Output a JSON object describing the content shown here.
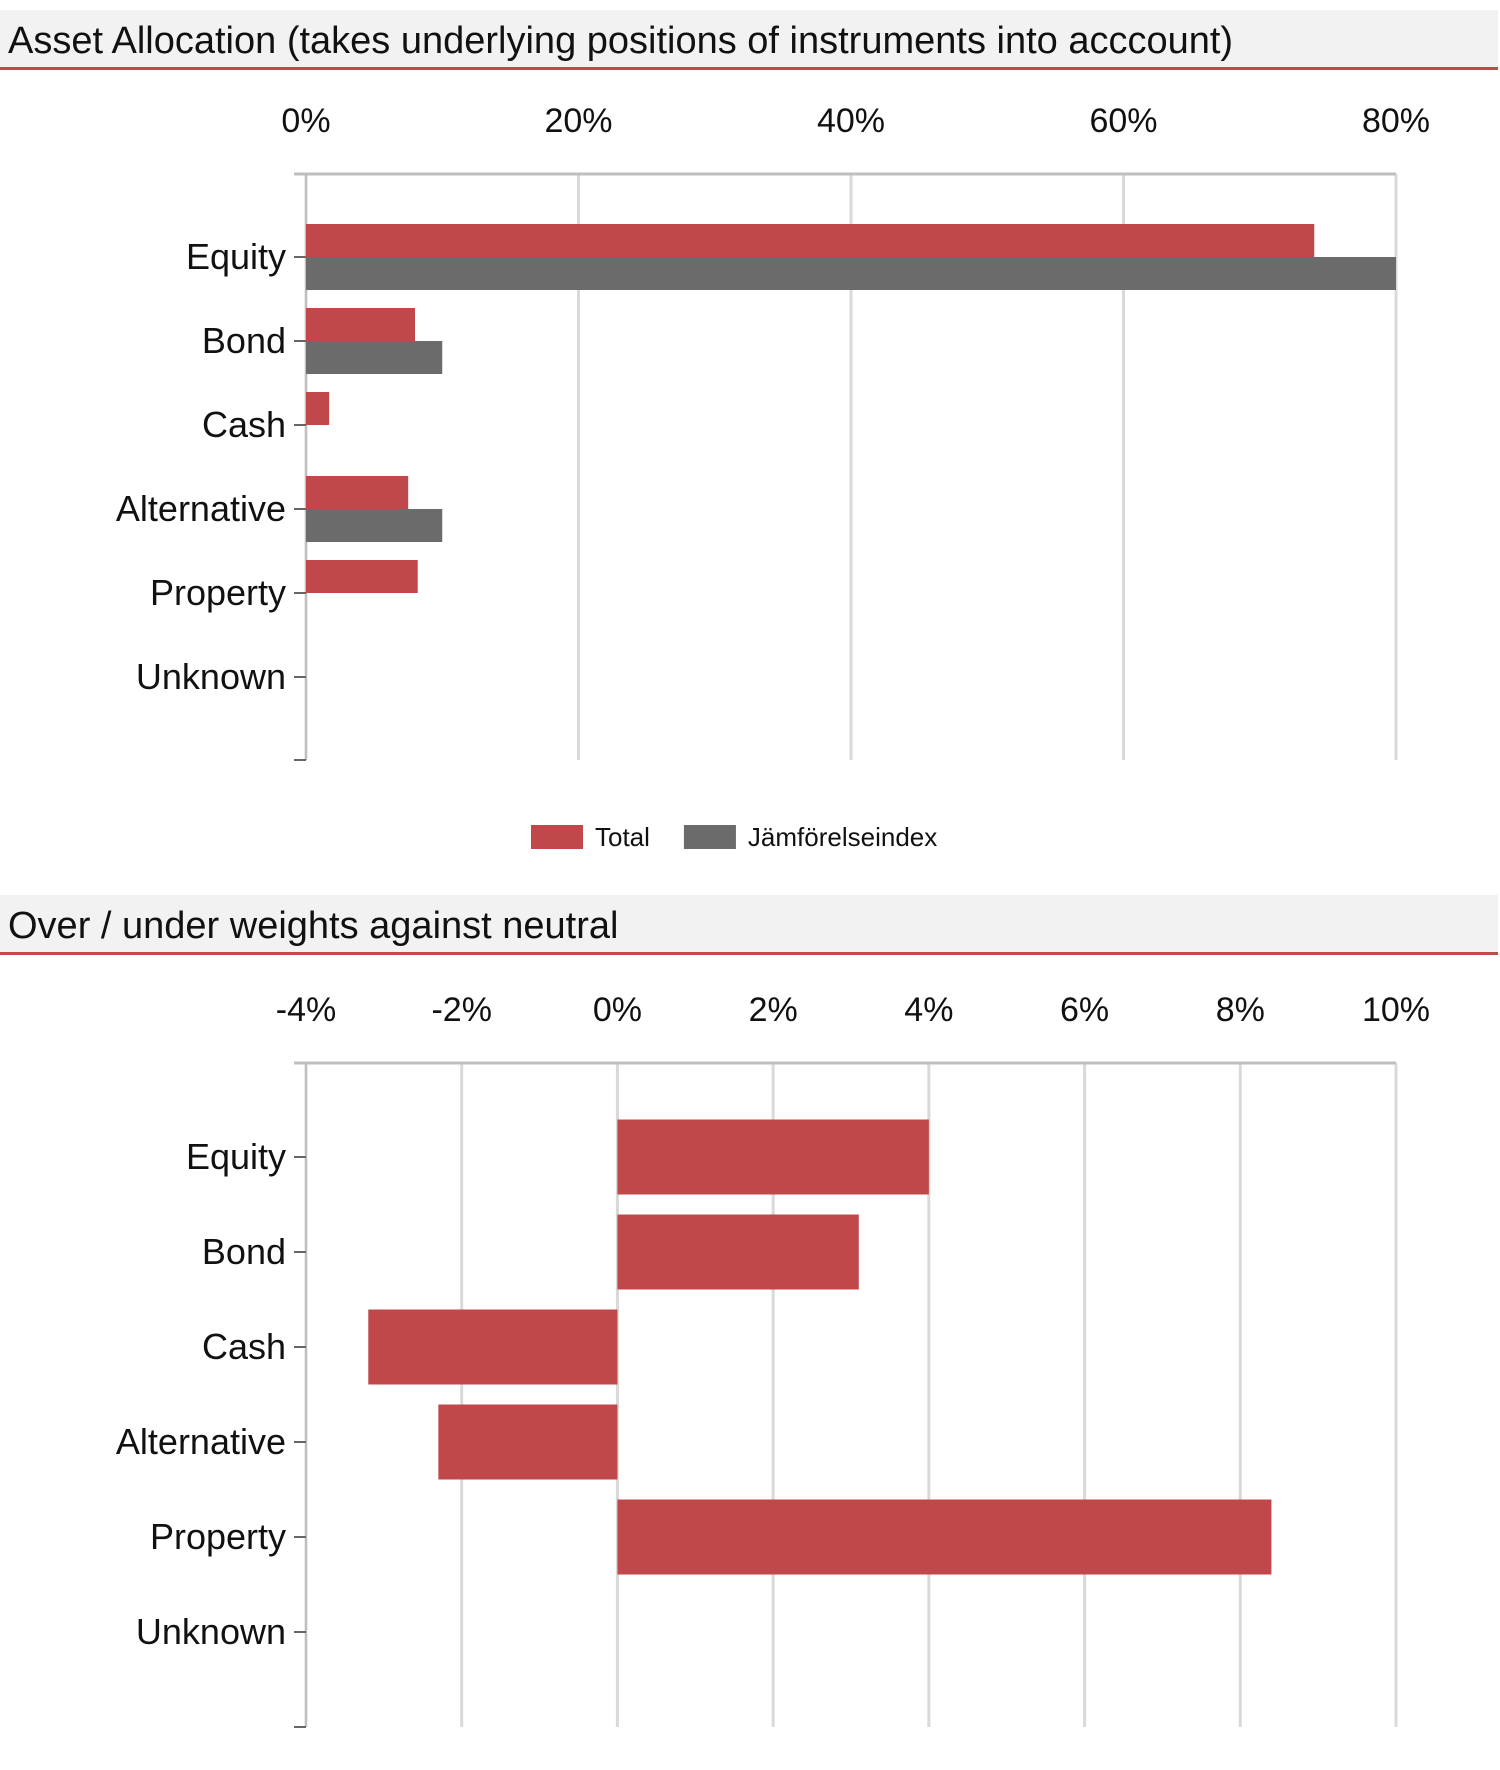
{
  "colors": {
    "total": "#c0474a",
    "benchmark": "#6b6b6b",
    "grid": "#d9d9d9",
    "axis": "#bfbfbf",
    "accent": "#c0474a",
    "header_bg": "#f2f2f2"
  },
  "sections": [
    {
      "title": "Asset Allocation (takes underlying positions of instruments into acccount)"
    },
    {
      "title": "Over / under weights against neutral"
    }
  ],
  "chart_data": [
    {
      "type": "bar",
      "orientation": "horizontal",
      "title": "Asset Allocation (takes underlying positions of instruments into acccount)",
      "categories": [
        "Equity",
        "Bond",
        "Cash",
        "Alternative",
        "Property",
        "Unknown"
      ],
      "series": [
        {
          "name": "Total",
          "color": "#c0474a",
          "values": [
            74,
            8,
            1.7,
            7.5,
            8.2,
            0
          ]
        },
        {
          "name": "Jämförelseindex",
          "color": "#6b6b6b",
          "values": [
            80,
            10,
            0,
            10,
            0,
            0
          ]
        }
      ],
      "xlim": [
        0,
        80
      ],
      "x_ticks": [
        0,
        20,
        40,
        60,
        80
      ],
      "x_tick_labels": [
        "0%",
        "20%",
        "40%",
        "60%",
        "80%"
      ],
      "x_axis_position": "top",
      "grid": true,
      "legend": [
        "Total",
        "Jämförelseindex"
      ],
      "legend_position": "bottom"
    },
    {
      "type": "bar",
      "orientation": "horizontal",
      "title": "Over / under weights against neutral",
      "categories": [
        "Equity",
        "Bond",
        "Cash",
        "Alternative",
        "Property",
        "Unknown"
      ],
      "series": [
        {
          "color": "#c0474a",
          "values": [
            4.0,
            3.1,
            -3.2,
            -2.3,
            8.4,
            0
          ]
        }
      ],
      "xlim": [
        -4,
        10
      ],
      "x_ticks": [
        -4,
        -2,
        0,
        2,
        4,
        6,
        8,
        10
      ],
      "x_tick_labels": [
        "-4%",
        "-2%",
        "0%",
        "2%",
        "4%",
        "6%",
        "8%",
        "10%"
      ],
      "x_axis_position": "top",
      "grid": true
    }
  ]
}
